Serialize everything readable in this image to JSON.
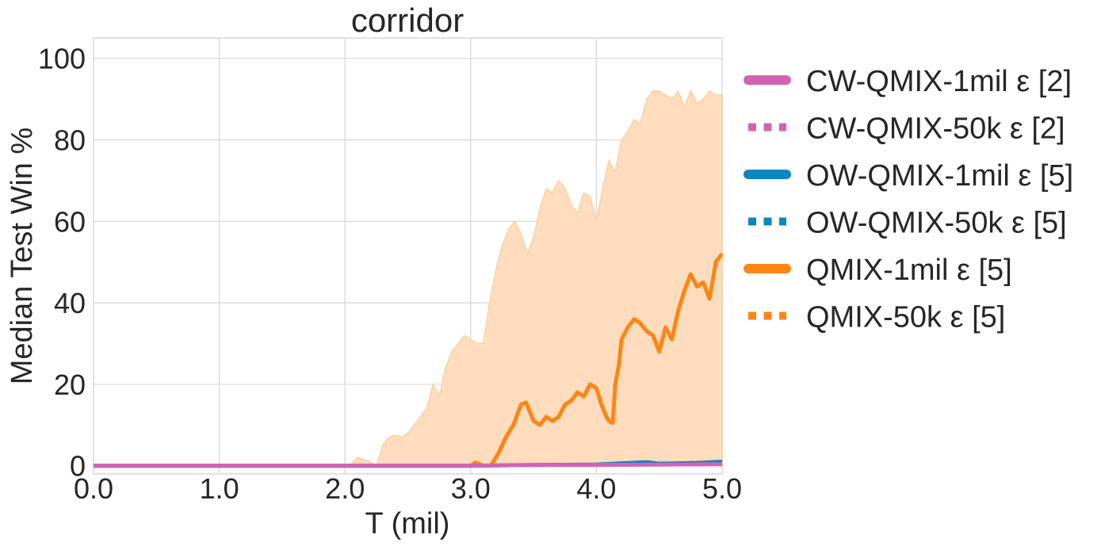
{
  "chart_data": {
    "type": "line",
    "title": "corridor",
    "xlabel": "T (mil)",
    "ylabel": "Median Test Win %",
    "xlim": [
      0,
      5
    ],
    "ylim": [
      -2,
      105
    ],
    "xticks": [
      0,
      1,
      2,
      3,
      4,
      5
    ],
    "xtick_labels": [
      "0.0",
      "1.0",
      "2.0",
      "3.0",
      "4.0",
      "5.0"
    ],
    "yticks": [
      0,
      20,
      40,
      60,
      80,
      100
    ],
    "ytick_labels": [
      "0",
      "20",
      "40",
      "60",
      "80",
      "100"
    ],
    "grid": true,
    "legend_placement": "outside-right",
    "series": [
      {
        "name": "CW-QMIX-1mil ε [2]",
        "color": "#d462b4",
        "style": "solid",
        "x": [
          0,
          1,
          2,
          3,
          3.5,
          4,
          4.5,
          5
        ],
        "y": [
          0,
          0,
          0,
          0,
          0.2,
          0.2,
          0.3,
          0.4
        ]
      },
      {
        "name": "CW-QMIX-50k ε [2]",
        "color": "#d462b4",
        "style": "dotted",
        "x": [
          0,
          1,
          2,
          3,
          3.5,
          4,
          4.5,
          5
        ],
        "y": [
          0,
          0,
          0,
          0,
          0.3,
          0.2,
          0.4,
          0.5
        ]
      },
      {
        "name": "OW-QMIX-1mil ε [5]",
        "color": "#0a87c1",
        "style": "solid",
        "x": [
          0,
          1,
          2,
          3,
          3.5,
          4,
          4.4,
          4.5,
          4.8,
          5
        ],
        "y": [
          0,
          0,
          0,
          0,
          0.2,
          0.3,
          0.9,
          0.5,
          0.7,
          1.0
        ]
      },
      {
        "name": "OW-QMIX-50k ε [5]",
        "color": "#0a87c1",
        "style": "dotted",
        "x": [
          0,
          1,
          2,
          3,
          3.5,
          4,
          4.5,
          5
        ],
        "y": [
          0,
          0,
          0,
          0,
          0.2,
          0.3,
          0.4,
          0.6
        ]
      },
      {
        "name": "QMIX-1mil ε [5]",
        "color": "#ff8514",
        "style": "solid",
        "x": [
          0,
          1,
          2,
          3,
          3.04,
          3.1,
          3.16,
          3.22,
          3.28,
          3.34,
          3.4,
          3.44,
          3.5,
          3.55,
          3.6,
          3.65,
          3.7,
          3.75,
          3.8,
          3.85,
          3.9,
          3.95,
          4.0,
          4.04,
          4.08,
          4.1,
          4.13,
          4.15,
          4.18,
          4.2,
          4.25,
          4.3,
          4.35,
          4.4,
          4.45,
          4.5,
          4.55,
          4.6,
          4.65,
          4.7,
          4.75,
          4.8,
          4.85,
          4.9,
          4.95,
          5.0
        ],
        "y": [
          0,
          0,
          0,
          0,
          0.8,
          0,
          0,
          3,
          7,
          10,
          15,
          15.5,
          11,
          10,
          12,
          11,
          12,
          15,
          16,
          18,
          17,
          20,
          19,
          15,
          12,
          11,
          10.5,
          20,
          25,
          31,
          34,
          36,
          35,
          33,
          32,
          28,
          34,
          31,
          38,
          43,
          47,
          44,
          45,
          41,
          50,
          52
        ]
      },
      {
        "name": "QMIX-50k ε [5]",
        "color": "#ff8514",
        "style": "dotted",
        "x": [
          0,
          1,
          2,
          3,
          3.5,
          4,
          4.3,
          4.5,
          4.8,
          5
        ],
        "y": [
          0,
          0,
          0,
          0,
          0.3,
          0.5,
          0.7,
          0.6,
          0.9,
          1.2
        ]
      }
    ],
    "band": {
      "series": "QMIX-1mil ε [5]",
      "color": "#ffdcbd",
      "x": [
        0,
        2.0,
        2.05,
        2.1,
        2.15,
        2.2,
        2.25,
        2.3,
        2.35,
        2.4,
        2.45,
        2.5,
        2.55,
        2.6,
        2.65,
        2.7,
        2.75,
        2.8,
        2.85,
        2.9,
        2.95,
        3.0,
        3.05,
        3.1,
        3.15,
        3.2,
        3.25,
        3.3,
        3.35,
        3.4,
        3.45,
        3.5,
        3.55,
        3.6,
        3.65,
        3.7,
        3.75,
        3.8,
        3.85,
        3.9,
        3.95,
        4.0,
        4.05,
        4.1,
        4.15,
        4.2,
        4.25,
        4.3,
        4.35,
        4.4,
        4.45,
        4.5,
        4.55,
        4.6,
        4.65,
        4.7,
        4.75,
        4.8,
        4.85,
        4.9,
        4.95,
        5.0
      ],
      "upper": [
        0,
        0,
        0.5,
        2,
        1.5,
        1,
        0,
        5,
        7,
        7.5,
        7,
        8,
        10,
        12,
        14,
        20,
        17,
        24,
        28,
        30,
        32,
        31,
        30,
        30,
        40,
        48,
        54,
        58,
        60,
        57,
        52,
        56,
        63,
        68,
        67,
        70,
        68,
        64,
        62,
        67,
        66,
        60,
        68,
        75,
        72,
        80,
        82,
        85,
        84,
        90,
        92,
        92,
        91,
        90,
        92,
        88,
        92,
        89,
        90,
        92,
        91,
        91
      ],
      "lower": [
        0,
        0,
        0,
        0,
        0,
        0,
        0,
        0,
        0,
        0,
        0,
        0,
        0,
        0,
        0,
        0,
        0,
        0,
        0,
        0,
        0,
        0,
        0,
        0,
        0,
        0,
        0,
        0,
        0,
        0,
        0,
        0,
        0,
        0,
        0,
        0,
        0,
        0,
        0,
        0,
        0,
        0,
        0,
        0,
        0,
        0,
        0,
        0,
        0,
        0,
        0,
        0,
        0,
        0,
        0,
        0,
        0,
        0,
        0,
        0,
        0,
        0
      ]
    }
  }
}
